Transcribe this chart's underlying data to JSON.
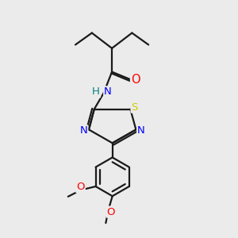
{
  "bg_color": "#ebebeb",
  "bond_color": "#1a1a1a",
  "atom_colors": {
    "O": "#ff0000",
    "N": "#0000ff",
    "S": "#cccc00",
    "H": "#008080",
    "C": "#1a1a1a"
  },
  "bond_width": 1.6,
  "font_size": 9.5
}
